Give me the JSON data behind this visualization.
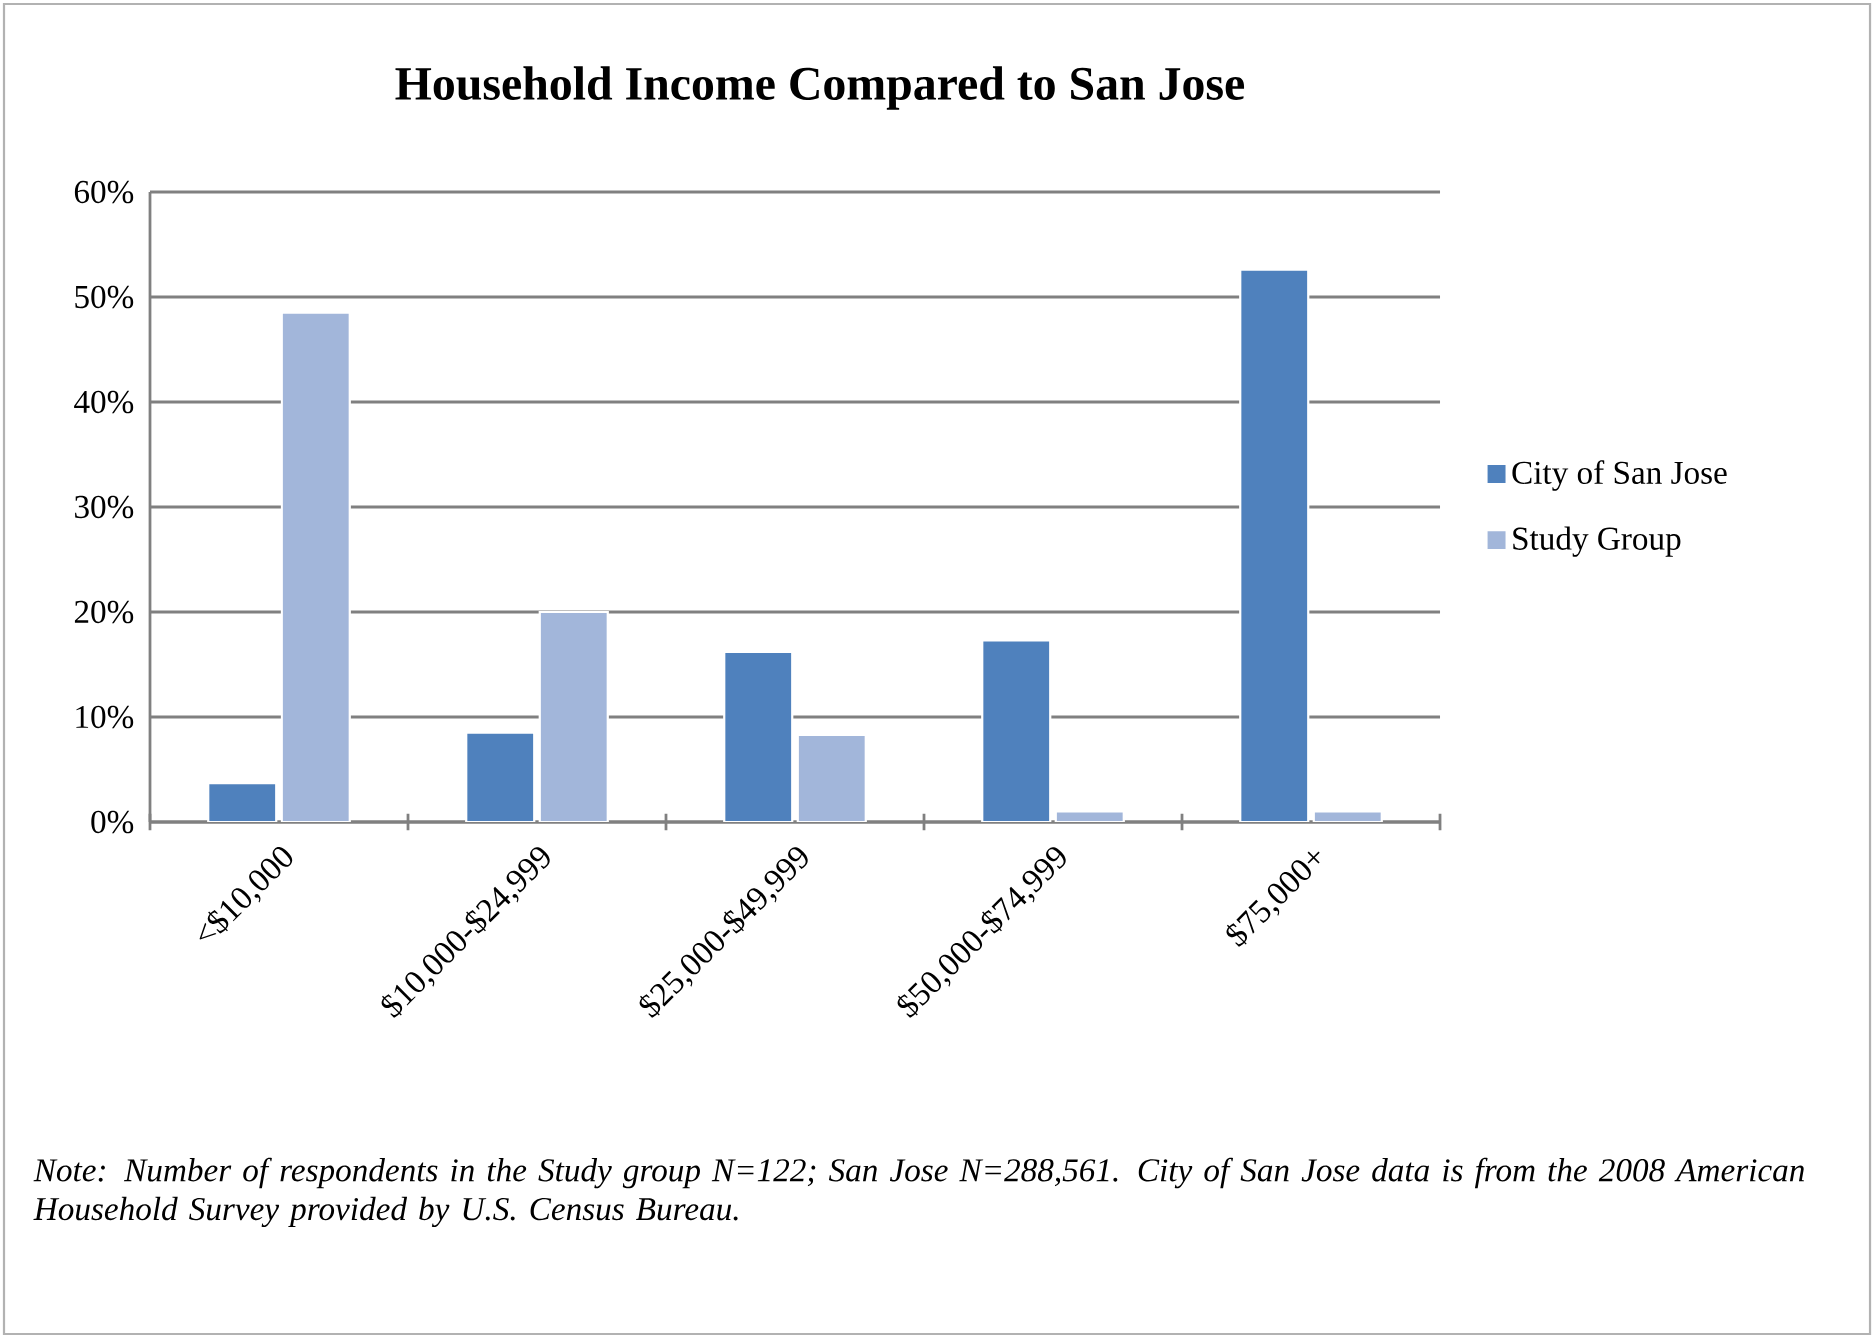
{
  "chart_data": {
    "type": "bar",
    "title": "Household Income Compared to San Jose",
    "categories": [
      "<$10,000",
      "$10,000-$24,999",
      "$25,000-$49,999",
      "$50,000-$74,999",
      "$75,000+"
    ],
    "series": [
      {
        "name": "City of San Jose",
        "color": "#4f81bd",
        "values": [
          3.7,
          8.5,
          16.2,
          17.3,
          52.6
        ]
      },
      {
        "name": "Study Group",
        "color": "#a2b6da",
        "values": [
          48.5,
          20.0,
          8.3,
          1.0,
          1.0
        ]
      }
    ],
    "ylim": [
      0,
      60
    ],
    "yticks": [
      {
        "value": 0,
        "label": "0%"
      },
      {
        "value": 10,
        "label": "10%"
      },
      {
        "value": 20,
        "label": "20%"
      },
      {
        "value": 30,
        "label": "30%"
      },
      {
        "value": 40,
        "label": "40%"
      },
      {
        "value": 50,
        "label": "50%"
      },
      {
        "value": 60,
        "label": "60%"
      }
    ],
    "grid": "y",
    "legend": "right",
    "annotations": [
      "*Note: Number of respondents in the Study group N=122; San Jose N=288,561. City of San Jose data is from the 2008 American Household Survey provided by U.S. Census Bureau.*"
    ]
  }
}
